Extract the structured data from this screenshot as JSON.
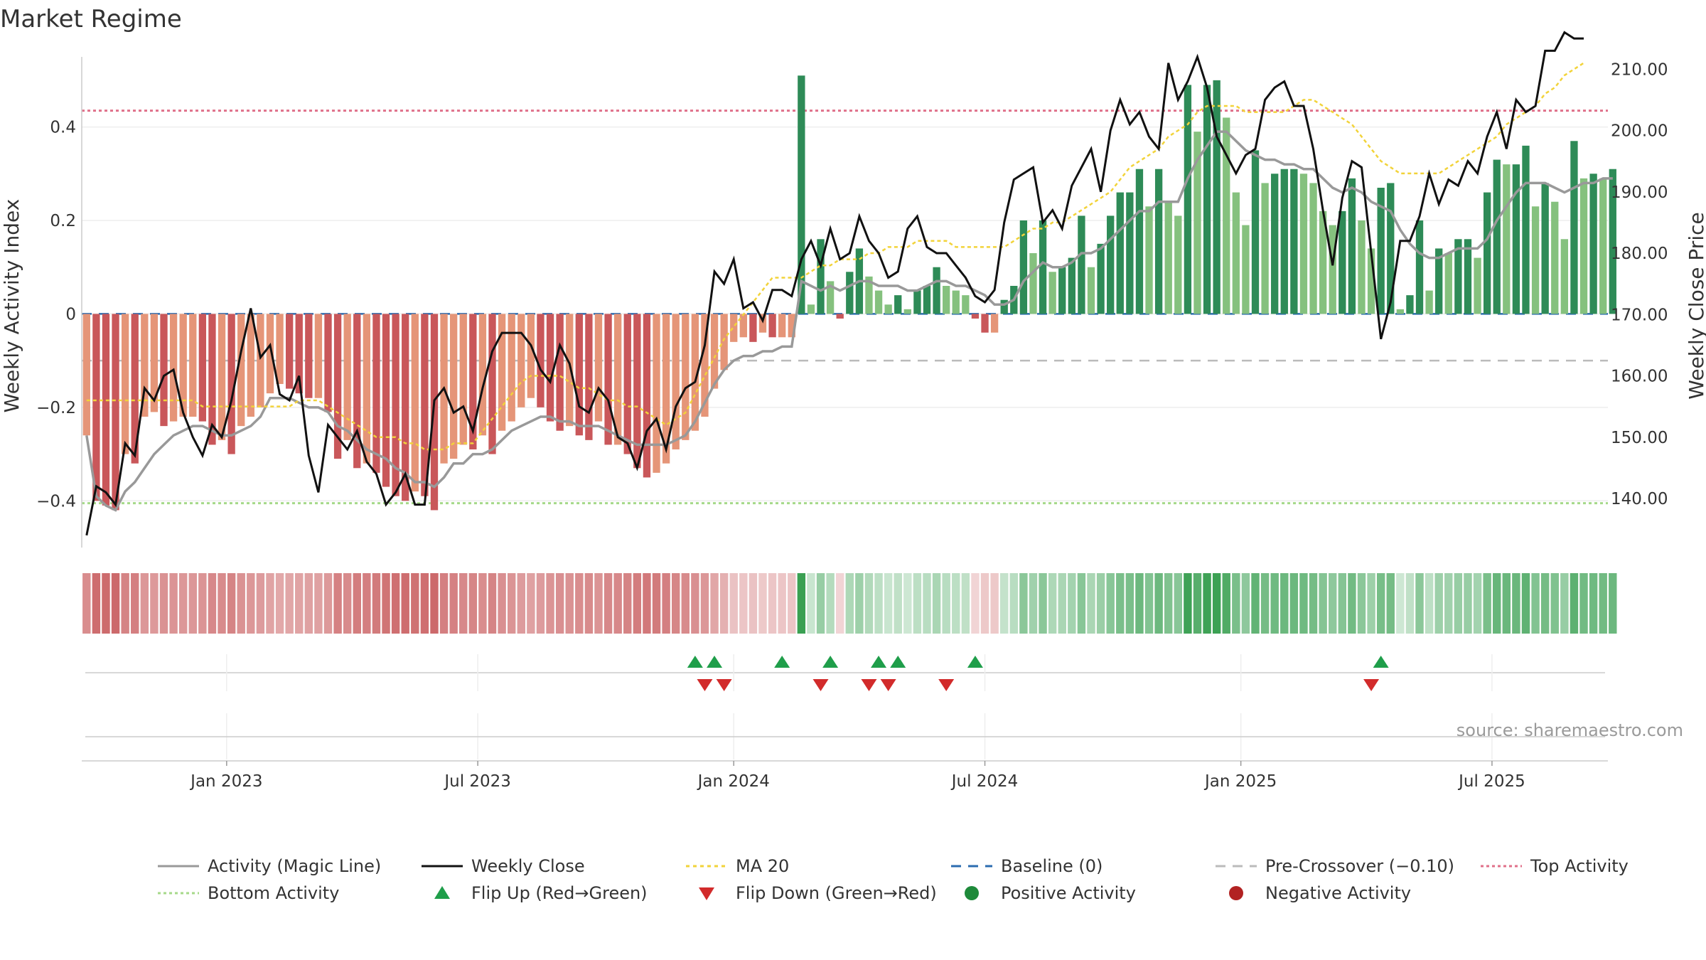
{
  "page_title": "Market Regime",
  "source_note": "source: sharemaestro.com",
  "colors": {
    "neg_strong": "#c9575a",
    "neg_light": "#e59578",
    "pos_strong": "#2e8b57",
    "pos_light": "#85c17e",
    "activity_line": "#999999",
    "close_line": "#111111",
    "ma_line": "#f2d33a",
    "baseline": "#2b6cb0",
    "pre_crossover": "#bbbbbb",
    "top_activity": "#e0708a",
    "bottom_activity": "#a6d98a",
    "flip_up": "#1f9e4a",
    "flip_down": "#d22b2b",
    "positive_dot": "#1e8a3a",
    "negative_dot": "#b22222"
  },
  "chart_data": {
    "type": "bar",
    "title": "Market Regime",
    "ylabel_left": "Weekly Activity Index",
    "ylabel_right": "Weekly Close Price",
    "ylim_left": [
      -0.5,
      0.55
    ],
    "ylim_right": [
      132.0,
      212.0
    ],
    "left_ticks": [
      {
        "value": 0.4,
        "label": "0.4"
      },
      {
        "value": 0.2,
        "label": "0.2"
      },
      {
        "value": 0.0,
        "label": "0"
      },
      {
        "value": -0.2,
        "label": "−0.2"
      },
      {
        "value": -0.4,
        "label": "−0.4"
      }
    ],
    "right_ticks": [
      {
        "value": 210,
        "label": "210.00"
      },
      {
        "value": 200,
        "label": "200.00"
      },
      {
        "value": 190,
        "label": "190.00"
      },
      {
        "value": 180,
        "label": "180.00"
      },
      {
        "value": 170,
        "label": "170.00"
      },
      {
        "value": 160,
        "label": "160.00"
      },
      {
        "value": 150,
        "label": "150.00"
      },
      {
        "value": 140,
        "label": "140.00"
      }
    ],
    "x_ticks": [
      {
        "week": 14.5,
        "label": "Jan 2023"
      },
      {
        "week": 40.5,
        "label": "Jul 2023"
      },
      {
        "week": 67,
        "label": "Jan 2024"
      },
      {
        "week": 93,
        "label": "Jul 2024"
      },
      {
        "week": 119.5,
        "label": "Jan 2025"
      },
      {
        "week": 145.5,
        "label": "Jul 2025"
      }
    ],
    "x_range": [
      -0.5,
      157.5
    ],
    "top_activity_level": 0.435,
    "bottom_activity_level": -0.405,
    "pre_crossover_level": -0.1,
    "baseline_level": 0.0,
    "activity": [
      -0.26,
      -0.4,
      -0.41,
      -0.42,
      -0.3,
      -0.32,
      -0.22,
      -0.21,
      -0.24,
      -0.23,
      -0.22,
      -0.22,
      -0.23,
      -0.28,
      -0.27,
      -0.3,
      -0.24,
      -0.22,
      -0.2,
      -0.17,
      -0.15,
      -0.16,
      -0.17,
      -0.18,
      -0.18,
      -0.21,
      -0.31,
      -0.27,
      -0.33,
      -0.32,
      -0.34,
      -0.37,
      -0.39,
      -0.4,
      -0.38,
      -0.39,
      -0.42,
      -0.32,
      -0.31,
      -0.28,
      -0.29,
      -0.26,
      -0.3,
      -0.25,
      -0.23,
      -0.2,
      -0.18,
      -0.2,
      -0.23,
      -0.25,
      -0.24,
      -0.26,
      -0.27,
      -0.23,
      -0.28,
      -0.28,
      -0.3,
      -0.33,
      -0.35,
      -0.34,
      -0.32,
      -0.29,
      -0.27,
      -0.25,
      -0.22,
      -0.16,
      -0.12,
      -0.06,
      -0.05,
      -0.06,
      -0.04,
      -0.05,
      -0.05,
      -0.05,
      0.51,
      0.02,
      0.16,
      0.07,
      -0.01,
      0.09,
      0.14,
      0.08,
      0.05,
      0.02,
      0.04,
      0.01,
      0.05,
      0.06,
      0.1,
      0.06,
      0.05,
      0.04,
      -0.01,
      -0.04,
      -0.04,
      0.03,
      0.06,
      0.2,
      0.13,
      0.2,
      0.09,
      0.1,
      0.12,
      0.21,
      0.1,
      0.15,
      0.21,
      0.26,
      0.26,
      0.31,
      0.23,
      0.31,
      0.24,
      0.21,
      0.49,
      0.39,
      0.49,
      0.5,
      0.42,
      0.26,
      0.19,
      0.35,
      0.28,
      0.3,
      0.31,
      0.31,
      0.3,
      0.28,
      0.22,
      0.19,
      0.22,
      0.29,
      0.2,
      0.14,
      0.27,
      0.28,
      0.01,
      0.04,
      0.2,
      0.05,
      0.14,
      0.13,
      0.16,
      0.16,
      0.12,
      0.26,
      0.33,
      0.32,
      0.32,
      0.36,
      0.23,
      0.28,
      0.24,
      0.16,
      0.37,
      0.29,
      0.3,
      0.29,
      0.31
    ],
    "magic_line": [
      -0.26,
      -0.39,
      -0.41,
      -0.42,
      -0.38,
      -0.36,
      -0.33,
      -0.3,
      -0.28,
      -0.26,
      -0.25,
      -0.24,
      -0.24,
      -0.25,
      -0.26,
      -0.26,
      -0.25,
      -0.24,
      -0.22,
      -0.18,
      -0.18,
      -0.18,
      -0.19,
      -0.2,
      -0.2,
      -0.21,
      -0.24,
      -0.25,
      -0.27,
      -0.29,
      -0.3,
      -0.31,
      -0.33,
      -0.34,
      -0.36,
      -0.36,
      -0.37,
      -0.35,
      -0.32,
      -0.32,
      -0.3,
      -0.3,
      -0.29,
      -0.27,
      -0.25,
      -0.24,
      -0.23,
      -0.22,
      -0.22,
      -0.23,
      -0.23,
      -0.24,
      -0.24,
      -0.24,
      -0.25,
      -0.26,
      -0.27,
      -0.28,
      -0.28,
      -0.28,
      -0.28,
      -0.27,
      -0.26,
      -0.23,
      -0.19,
      -0.15,
      -0.12,
      -0.1,
      -0.09,
      -0.09,
      -0.08,
      -0.08,
      -0.07,
      -0.07,
      0.07,
      0.06,
      0.05,
      0.06,
      0.05,
      0.06,
      0.07,
      0.07,
      0.06,
      0.06,
      0.06,
      0.05,
      0.05,
      0.06,
      0.07,
      0.07,
      0.06,
      0.06,
      0.05,
      0.04,
      0.02,
      0.02,
      0.03,
      0.07,
      0.09,
      0.11,
      0.1,
      0.1,
      0.11,
      0.13,
      0.13,
      0.14,
      0.16,
      0.18,
      0.2,
      0.22,
      0.22,
      0.24,
      0.24,
      0.24,
      0.29,
      0.33,
      0.36,
      0.39,
      0.39,
      0.37,
      0.35,
      0.34,
      0.33,
      0.33,
      0.32,
      0.32,
      0.31,
      0.31,
      0.29,
      0.27,
      0.26,
      0.27,
      0.26,
      0.24,
      0.23,
      0.22,
      0.18,
      0.15,
      0.13,
      0.12,
      0.12,
      0.13,
      0.14,
      0.14,
      0.14,
      0.16,
      0.2,
      0.23,
      0.26,
      0.28,
      0.28,
      0.28,
      0.27,
      0.26,
      0.27,
      0.28,
      0.28,
      0.29,
      0.29
    ],
    "weekly_close": [
      134,
      142,
      141,
      139,
      149,
      147,
      158,
      156,
      160,
      161,
      154,
      150,
      147,
      152,
      150,
      156,
      164,
      171,
      163,
      165,
      157,
      156,
      160,
      147,
      141,
      152,
      150,
      148,
      151,
      146,
      144,
      139,
      141,
      144,
      139,
      139,
      156,
      158,
      154,
      155,
      151,
      158,
      164,
      167,
      167,
      167,
      165,
      161,
      159,
      165,
      162,
      155,
      154,
      158,
      156,
      150,
      149,
      145,
      151,
      153,
      148,
      155,
      158,
      159,
      165,
      177,
      175,
      179,
      171,
      172,
      169,
      174,
      174,
      173,
      179,
      182,
      178,
      184,
      179,
      180,
      186,
      182,
      180,
      176,
      177,
      184,
      186,
      181,
      180,
      180,
      178,
      176,
      173,
      172,
      174,
      185,
      192,
      193,
      194,
      185,
      187,
      184,
      191,
      194,
      197,
      190,
      200,
      205,
      201,
      203,
      199,
      197,
      211,
      205,
      208,
      212,
      207,
      199,
      196,
      193,
      196,
      197,
      205,
      207,
      208,
      204,
      204,
      197,
      187,
      178,
      189,
      195,
      194,
      180,
      166,
      172,
      182,
      182,
      186,
      193,
      188,
      192,
      191,
      195,
      193,
      199,
      203,
      197,
      205,
      203,
      204,
      213,
      213,
      216,
      215,
      215
    ],
    "ma20": [
      156,
      156,
      156,
      156,
      156,
      156,
      156,
      156,
      156,
      156,
      156,
      156,
      155,
      155,
      155,
      155,
      155,
      155,
      155,
      155,
      155,
      155,
      156,
      156,
      156,
      155,
      154,
      153,
      152,
      151,
      150,
      150,
      150,
      149,
      149,
      148,
      148,
      148,
      149,
      149,
      149,
      151,
      153,
      155,
      157,
      159,
      160,
      160,
      160,
      160,
      159,
      158,
      158,
      157,
      156,
      156,
      155,
      155,
      154,
      153,
      152,
      153,
      154,
      157,
      160,
      163,
      166,
      168,
      170,
      172,
      174,
      176,
      176,
      176,
      176,
      177,
      178,
      178,
      179,
      179,
      179,
      180,
      180,
      181,
      181,
      181,
      182,
      182,
      182,
      182,
      181,
      181,
      181,
      181,
      181,
      181,
      182,
      183,
      184,
      184,
      185,
      185,
      186,
      187,
      188,
      189,
      190,
      192,
      194,
      195,
      196,
      197,
      199,
      200,
      201,
      203,
      204,
      204,
      204,
      204,
      203,
      203,
      203,
      203,
      203,
      204,
      205,
      205,
      204,
      203,
      202,
      201,
      199,
      197,
      195,
      194,
      193,
      193,
      193,
      193,
      193,
      194,
      195,
      196,
      197,
      198,
      199,
      201,
      202,
      203,
      204,
      206,
      207,
      209,
      210,
      211
    ],
    "flip_up_weeks": [
      63,
      65,
      72,
      77,
      82,
      84,
      92,
      134
    ],
    "flip_down_weeks": [
      64,
      66,
      76,
      81,
      83,
      89,
      133
    ],
    "series_names": [
      "Activity (Magic Line)",
      "Weekly Close",
      "MA 20",
      "Baseline (0)",
      "Pre-Crossover (−0.10)",
      "Top Activity",
      "Bottom Activity",
      "Flip Up (Red→Green)",
      "Flip Down (Green→Red)",
      "Positive Activity",
      "Negative Activity"
    ]
  },
  "legend": {
    "items": [
      {
        "label": "Activity (Magic Line)",
        "kind": "line",
        "color": "#999999",
        "dash": "",
        "col": 0,
        "row": 0
      },
      {
        "label": "Weekly Close",
        "kind": "line",
        "color": "#111111",
        "dash": "",
        "col": 1,
        "row": 0
      },
      {
        "label": "MA 20",
        "kind": "line",
        "color": "#f2d33a",
        "dash": "5,5",
        "col": 2,
        "row": 0
      },
      {
        "label": "Baseline (0)",
        "kind": "line",
        "color": "#2b6cb0",
        "dash": "14,10",
        "col": 3,
        "row": 0
      },
      {
        "label": "Pre-Crossover (−0.10)",
        "kind": "line",
        "color": "#bbbbbb",
        "dash": "14,10",
        "col": 4,
        "row": 0
      },
      {
        "label": "Top Activity",
        "kind": "line",
        "color": "#e0708a",
        "dash": "4,4",
        "col": 5,
        "row": 0
      },
      {
        "label": "Bottom Activity",
        "kind": "line",
        "color": "#a6d98a",
        "dash": "4,4",
        "col": 0,
        "row": 1
      },
      {
        "label": "Flip Up (Red→Green)",
        "kind": "tri-up",
        "color": "#1f9e4a",
        "dash": "",
        "col": 1,
        "row": 1
      },
      {
        "label": "Flip Down (Green→Red)",
        "kind": "tri-down",
        "color": "#d22b2b",
        "dash": "",
        "col": 2,
        "row": 1
      },
      {
        "label": "Positive Activity",
        "kind": "dot",
        "color": "#1e8a3a",
        "dash": "",
        "col": 3,
        "row": 1
      },
      {
        "label": "Negative Activity",
        "kind": "dot",
        "color": "#b22222",
        "dash": "",
        "col": 4,
        "row": 1
      }
    ]
  }
}
